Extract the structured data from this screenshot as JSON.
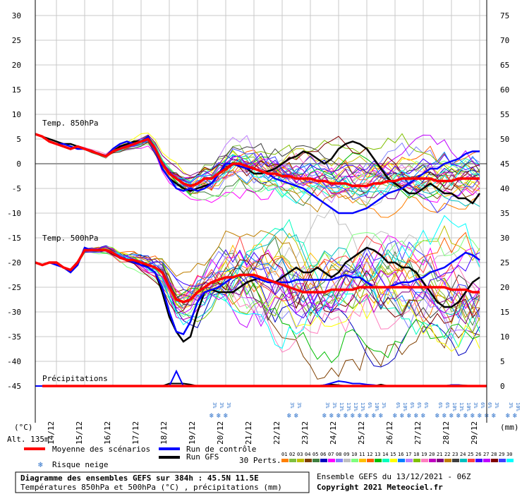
{
  "chart_data": {
    "type": "line",
    "title": "Diagramme des ensembles GEFS sur 384h : 45.5N 11.5E",
    "subtitle": "Températures 850hPa et 500hPa (°C) , précipitations (mm)",
    "left_axis": {
      "unit": "(°C)",
      "range": [
        -45,
        30
      ],
      "ticks": [
        30,
        25,
        20,
        15,
        10,
        5,
        0,
        -5,
        -10,
        -15,
        -20,
        -25,
        -30,
        -35,
        -40,
        -45
      ]
    },
    "right_axis": {
      "unit": "(mm)",
      "range": [
        0,
        75
      ],
      "ticks": [
        75,
        70,
        65,
        60,
        55,
        50,
        45,
        40,
        35,
        30,
        25,
        20,
        15,
        10,
        5,
        0
      ]
    },
    "altitude": "Alt. 135m",
    "panel_labels": {
      "t850": "Temp. 850hPa",
      "t500": "Temp. 500hPa",
      "precip": "Précipitations"
    },
    "dates": [
      "14/12",
      "15/12",
      "16/12",
      "17/12",
      "18/12",
      "19/12",
      "20/12",
      "21/12",
      "22/12",
      "23/12",
      "24/12",
      "25/12",
      "26/12",
      "27/12",
      "28/12",
      "29/12"
    ],
    "x_start": "13/12/2021 06Z",
    "x_step_hours": 6,
    "t850": {
      "mean": [
        6,
        5.5,
        4.5,
        4,
        3.5,
        3,
        3.5,
        3,
        2.5,
        2,
        1.5,
        2.5,
        3,
        3.5,
        4,
        4.5,
        5,
        3,
        0,
        -2,
        -3,
        -4,
        -4.5,
        -4,
        -3,
        -3,
        -2,
        -1,
        0,
        0,
        -0.5,
        -1,
        -1.5,
        -2,
        -2,
        -2.5,
        -2.5,
        -3,
        -3,
        -3,
        -3.5,
        -3.5,
        -4,
        -4,
        -4,
        -4.5,
        -4.5,
        -4.5,
        -4,
        -4,
        -3.5,
        -3.5,
        -3,
        -3,
        -3,
        -3,
        -3,
        -3.5,
        -3.5,
        -3.5,
        -3,
        -3,
        -3,
        -3
      ],
      "control": [
        6,
        5.5,
        4.5,
        4,
        4,
        3.5,
        3,
        3,
        2.5,
        2,
        1.5,
        3,
        4,
        4.5,
        4,
        4.5,
        5.5,
        3,
        -1,
        -3,
        -5,
        -5.5,
        -5,
        -5.5,
        -5,
        -4,
        -2,
        0,
        0,
        -0.5,
        -1,
        -1,
        -1.5,
        -2,
        -3,
        -3.5,
        -4,
        -4.5,
        -5,
        -6,
        -7,
        -8,
        -9,
        -10,
        -10,
        -10,
        -9.5,
        -9,
        -8,
        -7,
        -6,
        -5.5,
        -5,
        -4,
        -3,
        -2,
        -1,
        -1,
        0,
        0.5,
        1,
        2,
        2.5,
        2.5
      ],
      "gfs": [
        6,
        5.5,
        5,
        4.5,
        4,
        4,
        3.5,
        3,
        2.5,
        2,
        1.5,
        2.5,
        3.5,
        4,
        4.5,
        4.5,
        5.5,
        3,
        -1,
        -3,
        -4,
        -5,
        -5.5,
        -5,
        -4.5,
        -4,
        -2,
        0,
        0,
        -0.5,
        -1,
        -2,
        -2,
        -1.5,
        -1,
        0,
        1,
        1.5,
        2.5,
        2,
        1,
        0,
        1,
        3,
        4,
        4.5,
        4,
        3,
        1,
        -1,
        -3,
        -4,
        -5,
        -6,
        -6,
        -5,
        -4,
        -5,
        -6,
        -6,
        -7,
        -7,
        -8,
        -6
      ]
    },
    "t500": {
      "mean": [
        -20,
        -20.5,
        -20,
        -20,
        -21,
        -21.5,
        -20,
        -17.5,
        -17.5,
        -17.5,
        -17.5,
        -18,
        -19,
        -19.5,
        -19.5,
        -20,
        -20.5,
        -21,
        -22,
        -25,
        -27.5,
        -28,
        -27.5,
        -26,
        -25,
        -24,
        -23.5,
        -23,
        -23,
        -22.5,
        -22.5,
        -22.5,
        -23,
        -23.5,
        -24,
        -24.5,
        -25,
        -25.5,
        -26,
        -26,
        -26,
        -26,
        -25.5,
        -25.5,
        -25.5,
        -25.5,
        -25,
        -25,
        -25,
        -25,
        -25,
        -25,
        -25,
        -25,
        -25,
        -25,
        -25,
        -25,
        -25,
        -25.5,
        -25.5,
        -25.5,
        -26,
        -26
      ],
      "control": [
        -20,
        -20.5,
        -20,
        -20.5,
        -21,
        -22,
        -20.5,
        -17,
        -17.5,
        -17.5,
        -17.5,
        -18,
        -19,
        -19.5,
        -20,
        -20.5,
        -21,
        -22,
        -25,
        -30,
        -34,
        -34.5,
        -32,
        -28,
        -26,
        -25.5,
        -25,
        -24,
        -23,
        -22.5,
        -22.5,
        -23,
        -23.5,
        -24,
        -24,
        -24,
        -24,
        -23.5,
        -23.5,
        -23.5,
        -23.5,
        -23.5,
        -23.5,
        -23,
        -22.5,
        -23,
        -23,
        -24,
        -25,
        -25,
        -25,
        -24.5,
        -24,
        -24,
        -23.5,
        -23,
        -22,
        -21.5,
        -21,
        -20,
        -19,
        -18,
        -18.5,
        -19.5
      ],
      "gfs": [
        -20,
        -20.5,
        -20,
        -20,
        -21,
        -21.5,
        -20,
        -17.5,
        -17.5,
        -17.5,
        -17.5,
        -18,
        -19,
        -19.5,
        -20,
        -20,
        -21,
        -22,
        -26,
        -31,
        -34,
        -36,
        -35,
        -30,
        -26,
        -25.5,
        -26,
        -26,
        -26,
        -25,
        -24,
        -23.5,
        -23,
        -23.5,
        -24,
        -23,
        -22,
        -21,
        -22,
        -22,
        -21,
        -22,
        -23,
        -22,
        -20,
        -19,
        -18,
        -17,
        -17.5,
        -18.5,
        -20,
        -20,
        -21,
        -21,
        -22,
        -24,
        -26,
        -28,
        -29,
        -29,
        -28,
        -26,
        -24,
        -23
      ]
    },
    "precipitation_mm": {
      "mean": [
        0,
        0,
        0,
        0,
        0,
        0,
        0,
        0,
        0,
        0,
        0,
        0,
        0,
        0,
        0,
        0,
        0,
        0,
        0,
        0.3,
        0.4,
        0.3,
        0.2,
        0,
        0,
        0,
        0,
        0,
        0,
        0,
        0,
        0,
        0.2,
        0.1,
        0,
        0,
        0,
        0,
        0,
        0,
        0.2,
        0.3,
        0.4,
        0.3,
        0.2,
        0.2,
        0.2,
        0.1,
        0.1,
        0.1,
        0.1,
        0.1,
        0.1,
        0.1,
        0.1,
        0.1,
        0.1,
        0.1,
        0.1,
        0.1,
        0.1,
        0.1,
        0.1,
        0.1
      ],
      "control": [
        0,
        0,
        0,
        0,
        0,
        0,
        0,
        0,
        0,
        0,
        0,
        0,
        0,
        0,
        0,
        0,
        0,
        0,
        0,
        0,
        3,
        0,
        0,
        0,
        0,
        0,
        0,
        0,
        0,
        0,
        0,
        0,
        0,
        0,
        0,
        0,
        0,
        0,
        0,
        0,
        0,
        0.2,
        0.6,
        1,
        0.8,
        0.5,
        0.5,
        0.3,
        0.2,
        0,
        0,
        0,
        0,
        0,
        0,
        0,
        0,
        0,
        0,
        0.2,
        0.2,
        0,
        0,
        0
      ],
      "gfs": [
        0,
        0,
        0,
        0,
        0,
        0,
        0,
        0,
        0,
        0,
        0,
        0,
        0,
        0,
        0,
        0,
        0,
        0,
        0,
        0.5,
        0.5,
        0.5,
        0.3,
        0,
        0,
        0,
        0,
        0,
        0,
        0,
        0,
        0,
        0,
        0,
        0,
        0,
        0,
        0,
        0,
        0,
        0,
        0.2,
        0.3,
        0.2,
        0,
        0,
        0,
        0,
        0,
        0.3,
        0,
        0,
        0,
        0,
        0,
        0,
        0,
        0,
        0,
        0.2,
        0.2,
        0.1,
        0,
        0
      ]
    },
    "snow_risk": [
      {
        "step": 25,
        "pct": "3%"
      },
      {
        "step": 26,
        "pct": "3%"
      },
      {
        "step": 27,
        "pct": "3%"
      },
      {
        "step": 36,
        "pct": "3%"
      },
      {
        "step": 37,
        "pct": "3%"
      },
      {
        "step": 41,
        "pct": "3%"
      },
      {
        "step": 42,
        "pct": "3%"
      },
      {
        "step": 43,
        "pct": "13%"
      },
      {
        "step": 44,
        "pct": "13%"
      },
      {
        "step": 45,
        "pct": "13%"
      },
      {
        "step": 46,
        "pct": "13%"
      },
      {
        "step": 47,
        "pct": "6%"
      },
      {
        "step": 48,
        "pct": "10%"
      },
      {
        "step": 49,
        "pct": "3%"
      },
      {
        "step": 51,
        "pct": "6%"
      },
      {
        "step": 52,
        "pct": "10%"
      },
      {
        "step": 53,
        "pct": "6%"
      },
      {
        "step": 54,
        "pct": "6%"
      },
      {
        "step": 55,
        "pct": "6%"
      },
      {
        "step": 57,
        "pct": "6%"
      },
      {
        "step": 58,
        "pct": "6%"
      },
      {
        "step": 59,
        "pct": "10%"
      },
      {
        "step": 60,
        "pct": "13%"
      },
      {
        "step": 61,
        "pct": "10%"
      },
      {
        "step": 62,
        "pct": "3%"
      },
      {
        "step": 63,
        "pct": "6%"
      },
      {
        "step": 64,
        "pct": "6%"
      },
      {
        "step": 65,
        "pct": "3%"
      },
      {
        "step": 67,
        "pct": "3%"
      },
      {
        "step": 68,
        "pct": "10%"
      }
    ],
    "legend": {
      "mean": "Moyenne des scénarios",
      "control": "Run de contrôle",
      "gfs": "Run GFS",
      "snow": "Risque neige",
      "perts_label": "30 Perts.",
      "perts": [
        "01",
        "02",
        "03",
        "04",
        "05",
        "06",
        "07",
        "08",
        "09",
        "10",
        "11",
        "12",
        "13",
        "14",
        "15",
        "16",
        "17",
        "18",
        "19",
        "20",
        "21",
        "22",
        "23",
        "24",
        "25",
        "26",
        "27",
        "28",
        "29",
        "30"
      ]
    },
    "colors": {
      "mean": "#ff0000",
      "control": "#0000ff",
      "gfs": "#000000",
      "grid": "#c8c8c8",
      "perts": [
        "#ff7f00",
        "#7fbf3f",
        "#bfbf00",
        "#7f3f00",
        "#3f7f3f",
        "#0000bf",
        "#ff00ff",
        "#7f7fff",
        "#bfbfbf",
        "#7fff7f",
        "#ffbf00",
        "#ff5f00",
        "#00bf00",
        "#00ffbf",
        "#ffff00",
        "#007fff",
        "#bf7fff",
        "#7fbf00",
        "#ff7fbf",
        "#bf00bf",
        "#7f007f",
        "#bf7f00",
        "#3f3f3f",
        "#00bfbf",
        "#ff3f3f",
        "#3f00ff",
        "#bf00ff",
        "#7f0000",
        "#3f3fff",
        "#00ffff"
      ]
    },
    "footer": {
      "run_info": "Ensemble GEFS du 13/12/2021 - 06Z",
      "copyright": "Copyright 2021 Meteociel.fr"
    }
  }
}
